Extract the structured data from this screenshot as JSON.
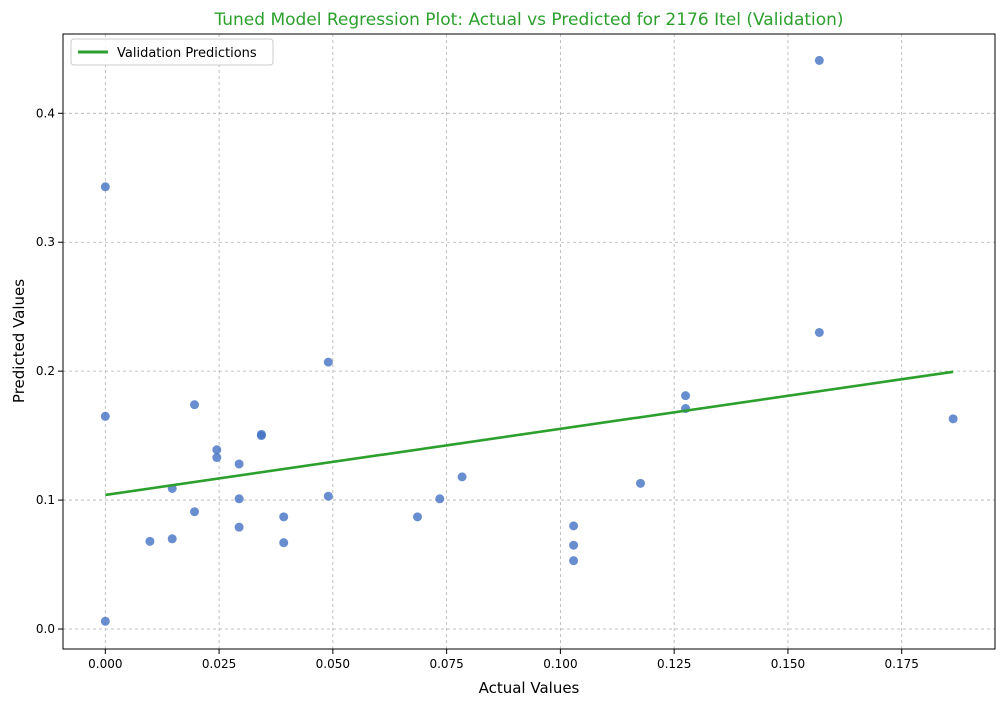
{
  "chart_data": {
    "type": "scatter",
    "title": "Tuned Model Regression Plot: Actual vs Predicted for 2176 Itel (Validation)",
    "xlabel": "Actual Values",
    "ylabel": "Predicted Values",
    "xlim": [
      -0.0093,
      0.1955
    ],
    "ylim": [
      -0.0155,
      0.4615
    ],
    "x_ticks": [
      0.0,
      0.025,
      0.05,
      0.075,
      0.1,
      0.125,
      0.15,
      0.175
    ],
    "x_tick_labels": [
      "0.000",
      "0.025",
      "0.050",
      "0.075",
      "0.100",
      "0.125",
      "0.150",
      "0.175"
    ],
    "y_ticks": [
      0.0,
      0.1,
      0.2,
      0.3,
      0.4
    ],
    "y_tick_labels": [
      "0.0",
      "0.1",
      "0.2",
      "0.3",
      "0.4"
    ],
    "grid": true,
    "legend_position": "top-left",
    "colors": {
      "title": "#2ca02c",
      "points": "#4472c4",
      "line": "#2ca02c",
      "grid": "#b0b0b0"
    },
    "points": [
      {
        "x": 0.0,
        "y": 0.343
      },
      {
        "x": 0.0,
        "y": 0.165
      },
      {
        "x": 0.0,
        "y": 0.006
      },
      {
        "x": 0.0098,
        "y": 0.068
      },
      {
        "x": 0.0147,
        "y": 0.109
      },
      {
        "x": 0.0147,
        "y": 0.07
      },
      {
        "x": 0.0196,
        "y": 0.174
      },
      {
        "x": 0.0196,
        "y": 0.091
      },
      {
        "x": 0.0245,
        "y": 0.139
      },
      {
        "x": 0.0245,
        "y": 0.133
      },
      {
        "x": 0.0294,
        "y": 0.128
      },
      {
        "x": 0.0294,
        "y": 0.101
      },
      {
        "x": 0.0294,
        "y": 0.079
      },
      {
        "x": 0.0343,
        "y": 0.151
      },
      {
        "x": 0.0343,
        "y": 0.15
      },
      {
        "x": 0.0392,
        "y": 0.087
      },
      {
        "x": 0.0392,
        "y": 0.067
      },
      {
        "x": 0.049,
        "y": 0.207
      },
      {
        "x": 0.049,
        "y": 0.103
      },
      {
        "x": 0.0686,
        "y": 0.087
      },
      {
        "x": 0.0735,
        "y": 0.101
      },
      {
        "x": 0.0784,
        "y": 0.118
      },
      {
        "x": 0.1029,
        "y": 0.08
      },
      {
        "x": 0.1029,
        "y": 0.065
      },
      {
        "x": 0.1029,
        "y": 0.053
      },
      {
        "x": 0.1176,
        "y": 0.113
      },
      {
        "x": 0.1275,
        "y": 0.181
      },
      {
        "x": 0.1275,
        "y": 0.171
      },
      {
        "x": 0.1569,
        "y": 0.441
      },
      {
        "x": 0.1569,
        "y": 0.23
      },
      {
        "x": 0.1863,
        "y": 0.163
      }
    ],
    "series": [
      {
        "name": "Validation Predictions",
        "type": "line",
        "x": [
          0.0,
          0.1863
        ],
        "y": [
          0.104,
          0.1995
        ]
      }
    ]
  }
}
